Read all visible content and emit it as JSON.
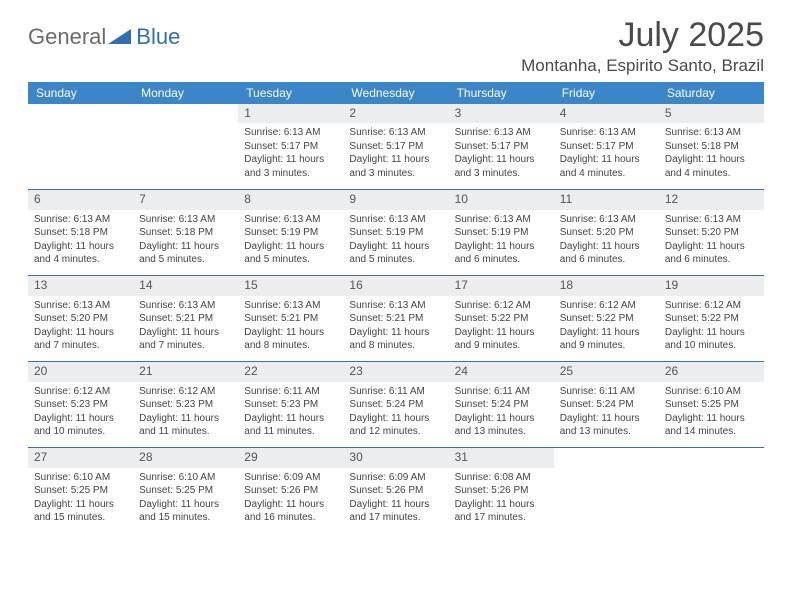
{
  "brand": {
    "general": "General",
    "blue": "Blue"
  },
  "title": "July 2025",
  "location": "Montanha, Espirito Santo, Brazil",
  "header_bg": "#3b86c8",
  "header_fg": "#ffffff",
  "daynum_bg": "#ebedef",
  "row_border": "#3b6fa8",
  "logo_mark_color": "#2f6fb3",
  "day_labels": [
    "Sunday",
    "Monday",
    "Tuesday",
    "Wednesday",
    "Thursday",
    "Friday",
    "Saturday"
  ],
  "font_family": "Arial, Helvetica, sans-serif",
  "title_fontsize": 34,
  "location_fontsize": 17,
  "header_fontsize": 12,
  "daynum_fontsize": 12,
  "body_fontsize": 10,
  "weeks": [
    [
      null,
      null,
      {
        "n": "1",
        "sunrise": "6:13 AM",
        "sunset": "5:17 PM",
        "daylight": "11 hours and 3 minutes."
      },
      {
        "n": "2",
        "sunrise": "6:13 AM",
        "sunset": "5:17 PM",
        "daylight": "11 hours and 3 minutes."
      },
      {
        "n": "3",
        "sunrise": "6:13 AM",
        "sunset": "5:17 PM",
        "daylight": "11 hours and 3 minutes."
      },
      {
        "n": "4",
        "sunrise": "6:13 AM",
        "sunset": "5:17 PM",
        "daylight": "11 hours and 4 minutes."
      },
      {
        "n": "5",
        "sunrise": "6:13 AM",
        "sunset": "5:18 PM",
        "daylight": "11 hours and 4 minutes."
      }
    ],
    [
      {
        "n": "6",
        "sunrise": "6:13 AM",
        "sunset": "5:18 PM",
        "daylight": "11 hours and 4 minutes."
      },
      {
        "n": "7",
        "sunrise": "6:13 AM",
        "sunset": "5:18 PM",
        "daylight": "11 hours and 5 minutes."
      },
      {
        "n": "8",
        "sunrise": "6:13 AM",
        "sunset": "5:19 PM",
        "daylight": "11 hours and 5 minutes."
      },
      {
        "n": "9",
        "sunrise": "6:13 AM",
        "sunset": "5:19 PM",
        "daylight": "11 hours and 5 minutes."
      },
      {
        "n": "10",
        "sunrise": "6:13 AM",
        "sunset": "5:19 PM",
        "daylight": "11 hours and 6 minutes."
      },
      {
        "n": "11",
        "sunrise": "6:13 AM",
        "sunset": "5:20 PM",
        "daylight": "11 hours and 6 minutes."
      },
      {
        "n": "12",
        "sunrise": "6:13 AM",
        "sunset": "5:20 PM",
        "daylight": "11 hours and 6 minutes."
      }
    ],
    [
      {
        "n": "13",
        "sunrise": "6:13 AM",
        "sunset": "5:20 PM",
        "daylight": "11 hours and 7 minutes."
      },
      {
        "n": "14",
        "sunrise": "6:13 AM",
        "sunset": "5:21 PM",
        "daylight": "11 hours and 7 minutes."
      },
      {
        "n": "15",
        "sunrise": "6:13 AM",
        "sunset": "5:21 PM",
        "daylight": "11 hours and 8 minutes."
      },
      {
        "n": "16",
        "sunrise": "6:13 AM",
        "sunset": "5:21 PM",
        "daylight": "11 hours and 8 minutes."
      },
      {
        "n": "17",
        "sunrise": "6:12 AM",
        "sunset": "5:22 PM",
        "daylight": "11 hours and 9 minutes."
      },
      {
        "n": "18",
        "sunrise": "6:12 AM",
        "sunset": "5:22 PM",
        "daylight": "11 hours and 9 minutes."
      },
      {
        "n": "19",
        "sunrise": "6:12 AM",
        "sunset": "5:22 PM",
        "daylight": "11 hours and 10 minutes."
      }
    ],
    [
      {
        "n": "20",
        "sunrise": "6:12 AM",
        "sunset": "5:23 PM",
        "daylight": "11 hours and 10 minutes."
      },
      {
        "n": "21",
        "sunrise": "6:12 AM",
        "sunset": "5:23 PM",
        "daylight": "11 hours and 11 minutes."
      },
      {
        "n": "22",
        "sunrise": "6:11 AM",
        "sunset": "5:23 PM",
        "daylight": "11 hours and 11 minutes."
      },
      {
        "n": "23",
        "sunrise": "6:11 AM",
        "sunset": "5:24 PM",
        "daylight": "11 hours and 12 minutes."
      },
      {
        "n": "24",
        "sunrise": "6:11 AM",
        "sunset": "5:24 PM",
        "daylight": "11 hours and 13 minutes."
      },
      {
        "n": "25",
        "sunrise": "6:11 AM",
        "sunset": "5:24 PM",
        "daylight": "11 hours and 13 minutes."
      },
      {
        "n": "26",
        "sunrise": "6:10 AM",
        "sunset": "5:25 PM",
        "daylight": "11 hours and 14 minutes."
      }
    ],
    [
      {
        "n": "27",
        "sunrise": "6:10 AM",
        "sunset": "5:25 PM",
        "daylight": "11 hours and 15 minutes."
      },
      {
        "n": "28",
        "sunrise": "6:10 AM",
        "sunset": "5:25 PM",
        "daylight": "11 hours and 15 minutes."
      },
      {
        "n": "29",
        "sunrise": "6:09 AM",
        "sunset": "5:26 PM",
        "daylight": "11 hours and 16 minutes."
      },
      {
        "n": "30",
        "sunrise": "6:09 AM",
        "sunset": "5:26 PM",
        "daylight": "11 hours and 17 minutes."
      },
      {
        "n": "31",
        "sunrise": "6:08 AM",
        "sunset": "5:26 PM",
        "daylight": "11 hours and 17 minutes."
      },
      null,
      null
    ]
  ]
}
